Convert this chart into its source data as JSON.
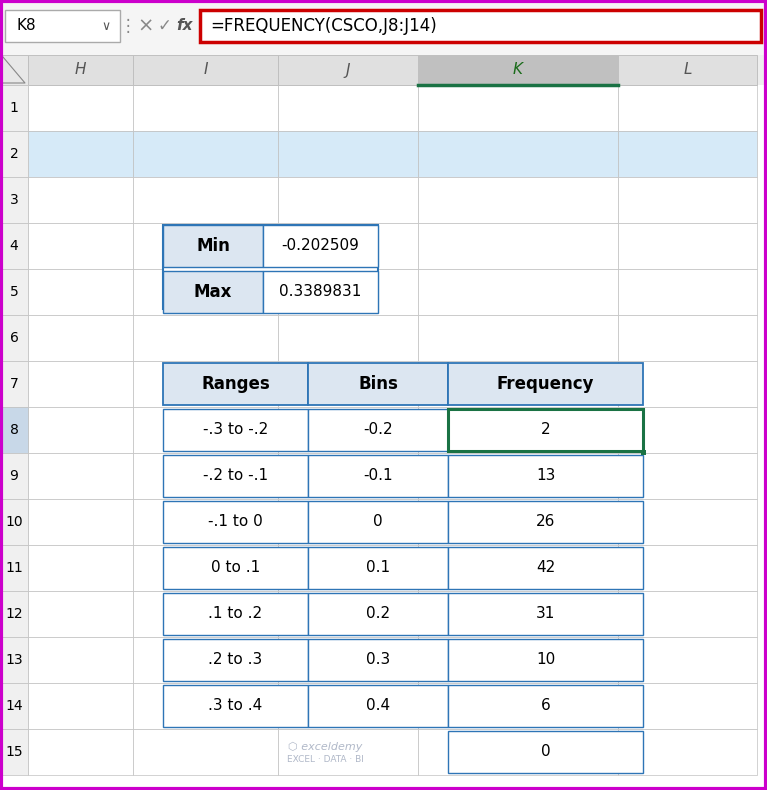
{
  "formula_bar_cell": "K8",
  "formula_bar_formula": "=FREQUENCY(CSCO,J8:J14)",
  "col_headers": [
    "H",
    "I",
    "J",
    "K",
    "L"
  ],
  "min_label": "Min",
  "min_value": "-0.202509",
  "max_label": "Max",
  "max_value": "0.3389831",
  "table_headers": [
    "Ranges",
    "Bins",
    "Frequency"
  ],
  "table_data": [
    [
      "-.3 to -.2",
      "-0.2",
      "2"
    ],
    [
      "-.2 to -.1",
      "-0.1",
      "13"
    ],
    [
      "-.1 to 0",
      "0",
      "26"
    ],
    [
      "0 to .1",
      "0.1",
      "42"
    ],
    [
      ".1 to .2",
      "0.2",
      "31"
    ],
    [
      ".2 to .3",
      "0.3",
      "10"
    ],
    [
      ".3 to .4",
      "0.4",
      "6"
    ]
  ],
  "extra_row_freq": "0",
  "watermark_line1": "exceldemy",
  "watermark_line2": "EXCEL · DATA · BI",
  "bg_color": "#ffffff",
  "cell_bg_white": "#ffffff",
  "col_header_bg": "#e0e0e0",
  "col_K_header_bg": "#c0c0c0",
  "row_num_bg": "#f0f0f0",
  "row2_bg": "#d6eaf8",
  "table_header_bg": "#dce6f1",
  "selected_cell_border": "#1a7244",
  "formula_border": "#cc0000",
  "outer_border": "#cc00cc",
  "grid_color": "#c0c0c0",
  "table_border": "#2e75b6",
  "K_col_bottom_border": "#1a7244",
  "toolbar_bg": "#f5f5f5",
  "formula_bg": "#ffffff"
}
